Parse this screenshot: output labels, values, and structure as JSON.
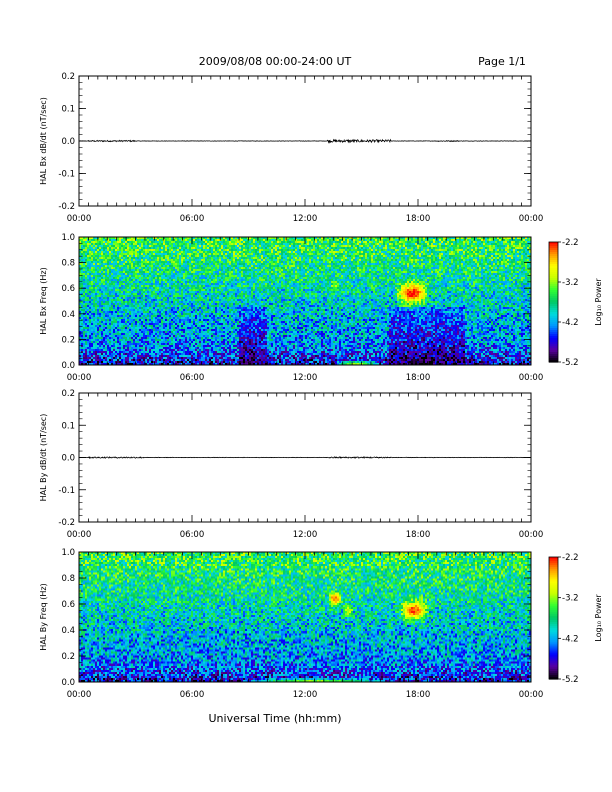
{
  "header": {
    "date_range": "2009/08/08  00:00-24:00 UT",
    "page": "Page 1/1"
  },
  "x_axis": {
    "label": "Universal Time (hh:mm)",
    "range_hours": [
      0,
      24
    ],
    "ticks": [
      "00:00",
      "06:00",
      "12:00",
      "18:00",
      "00:00"
    ]
  },
  "colorbar": {
    "label": "Log₁₀ Power",
    "range": [
      -5.2,
      -2.2
    ],
    "ticks": [
      "-2.2",
      "-3.2",
      "-4.2",
      "-5.2"
    ],
    "colors": [
      "#000000",
      "#5a00a0",
      "#0000ff",
      "#0096ff",
      "#00dcdc",
      "#00c864",
      "#32ff32",
      "#c8ff00",
      "#ffff00",
      "#ff9600",
      "#ff0000"
    ]
  },
  "chart_data": [
    {
      "type": "line",
      "name": "bx-dbdt",
      "ylabel": "HAL Bx dB/dt (nT/sec)",
      "ylim": [
        -0.2,
        0.2
      ],
      "yticks": [
        "0.2",
        "0.1",
        "0.0",
        "-0.1",
        "-0.2"
      ],
      "yvals": [
        0.2,
        0.1,
        0.0,
        -0.1,
        -0.2
      ],
      "baseline": 0.0,
      "noise_bursts": [
        {
          "start": 0.5,
          "end": 3.0,
          "amp": 0.002
        },
        {
          "start": 13.2,
          "end": 16.6,
          "amp": 0.004
        },
        {
          "start": 19.0,
          "end": 20.2,
          "amp": 0.0015
        }
      ]
    },
    {
      "type": "heatmap",
      "name": "bx-spectrogram",
      "ylabel": "HAL Bx Freq (Hz)",
      "ylim": [
        0,
        1.0
      ],
      "yticks": [
        "1.0",
        "0.8",
        "0.6",
        "0.4",
        "0.2",
        "0.0"
      ],
      "yvals": [
        1.0,
        0.8,
        0.6,
        0.4,
        0.2,
        0.0
      ],
      "zlim": [
        -5.2,
        -2.2
      ],
      "features": [
        {
          "t_start": 16.8,
          "t_end": 18.6,
          "f_center": 0.56,
          "f_width": 0.08,
          "level": -2.2
        },
        {
          "t_start": 13.3,
          "t_end": 13.9,
          "f_center": 0.62,
          "f_width": 0.04,
          "level": -3.2
        },
        {
          "t_start": 13.5,
          "t_end": 16.0,
          "f_center": 0.01,
          "f_width": 0.02,
          "level": -3.2
        }
      ],
      "quiet_bands": [
        {
          "t_start": 8.5,
          "t_end": 10.0,
          "f_max": 0.45,
          "level": -4.9
        },
        {
          "t_start": 16.5,
          "t_end": 20.5,
          "f_max": 0.45,
          "level": -4.9
        }
      ]
    },
    {
      "type": "line",
      "name": "by-dbdt",
      "ylabel": "HAL By dB/dt (nT/sec)",
      "ylim": [
        -0.2,
        0.2
      ],
      "yticks": [
        "0.2",
        "0.1",
        "0.0",
        "-0.1",
        "-0.2"
      ],
      "yvals": [
        0.2,
        0.1,
        0.0,
        -0.1,
        -0.2
      ],
      "baseline": 0.0,
      "noise_bursts": [
        {
          "start": 0.5,
          "end": 3.5,
          "amp": 0.002
        },
        {
          "start": 13.2,
          "end": 16.6,
          "amp": 0.002
        }
      ]
    },
    {
      "type": "heatmap",
      "name": "by-spectrogram",
      "ylabel": "HAL By Freq (Hz)",
      "ylim": [
        0,
        1.0
      ],
      "yticks": [
        "1.0",
        "0.8",
        "0.6",
        "0.4",
        "0.2",
        "0.0"
      ],
      "yvals": [
        1.0,
        0.8,
        0.6,
        0.4,
        0.2,
        0.0
      ],
      "zlim": [
        -5.2,
        -2.2
      ],
      "features": [
        {
          "t_start": 13.2,
          "t_end": 14.0,
          "f_center": 0.64,
          "f_width": 0.05,
          "level": -2.4
        },
        {
          "t_start": 14.0,
          "t_end": 14.6,
          "f_center": 0.55,
          "f_width": 0.04,
          "level": -3.0
        },
        {
          "t_start": 17.0,
          "t_end": 18.6,
          "f_center": 0.55,
          "f_width": 0.07,
          "level": -2.3
        },
        {
          "t_start": 8.5,
          "t_end": 16.5,
          "f_center": 0.01,
          "f_width": 0.015,
          "level": -3.3
        }
      ],
      "quiet_bands": []
    }
  ]
}
